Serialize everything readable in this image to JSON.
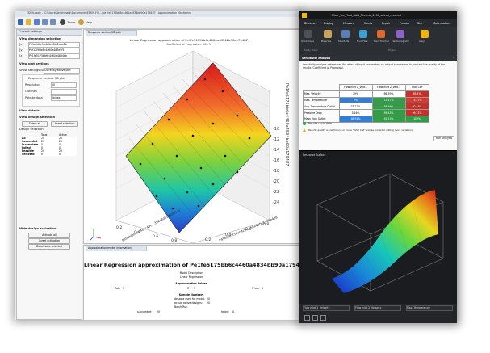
{
  "left_app": {
    "title": "EDEN-code - [C:\\Users\\Benchmark\\Documents\\EDEN-FV\\...\\pe1fe5175bb6c4460a4834bb90a179487 - Approximation Monitoring",
    "toolbar": {
      "zoom_label": "Zoom",
      "help_label": "Help"
    },
    "settings": {
      "panel_title": "Current settings",
      "view_dim_title": "View dimension selection",
      "dim_labels": [
        "[x]",
        "[y]",
        "[z]"
      ],
      "dim_values": [
        "P51a3d0c9b4e4c40b.1abe8b",
        "P5f12f5bb6c4460a487e5f5",
        "Pe1fe5175bb6c4460a4834bb"
      ],
      "plot_settings_title": "View plot settings",
      "show_setting_label": "Show settings for:",
      "show_setting_value": "Currently active plot",
      "response_label": "Response surface 3D plot",
      "field_labels": [
        "Resolution",
        "Outlines",
        "Palette data"
      ],
      "field_values": [
        "50",
        "",
        "Values"
      ],
      "view_details_title": "View details",
      "design_selection_title": "View design selection",
      "select_all": "Select all",
      "invert_selection": "Invert selection",
      "design_selection_label": "Design selection",
      "table_headers": [
        "",
        "Total",
        "Active"
      ],
      "table_rows": [
        [
          "All",
          "20",
          "20"
        ],
        [
          "Succeeded",
          "20",
          "20"
        ],
        [
          "Incomplete",
          "0",
          "0"
        ],
        [
          "Failed",
          "0",
          "0"
        ],
        [
          "Feasible",
          "20",
          "20"
        ],
        [
          "Selected",
          "0",
          "0"
        ]
      ],
      "design_activation_title": "Hide design activation",
      "activate_all": "Activate all",
      "invert_activation": "Invert activation",
      "deactivate_selected": "Deactivate selected"
    },
    "response_tab": "Response surface 3D plot",
    "chart_title": "Linear Regression approximation of Pe1fe5175bb6c4460a4834bb90a179487",
    "chart_subtitle": "Coefficient of Prognosis = 100 %",
    "z_axis_label": "Pe1fe5175bb6c4460a4834bb90a179487",
    "x_axis_label": "P39dbfa0e9b4e4c40e...3b8c8db5246b5c0",
    "y_axis_label": "P45bf0b3f34eb4c0c...66e4b0e1326e488",
    "z_ticks": [
      "-10",
      "-12",
      "-14",
      "-16",
      "-18",
      "-20",
      "-22",
      "-24"
    ],
    "x_ticks": [
      "0.2",
      "0.4",
      "0.6",
      "0.8"
    ],
    "y_ticks": [
      "0.2",
      "0.4",
      "0.6",
      "0.8"
    ],
    "approx_tab": "Approximation model information",
    "approx_title": "Linear Regression approximation of Pe1fe5175bb6c4460a4834bb90a179487",
    "model_desc_label": "Model Description",
    "model_desc_value": "Linear Regression",
    "approx_values_label": "Approximation Values",
    "cop_label": "CoP:",
    "cop_value": "1",
    "r2_label": "R²:",
    "r2_value": "1",
    "r2adj_label": "R²adj:",
    "r2adj_value": "1",
    "sample_numbers_label": "Sample Numbers",
    "designs_used_label": "designs used for model:",
    "designs_used_value": "20",
    "actual_active_label": "actual active designs:",
    "actual_active_value": "20",
    "batch_label": "Batch/Run",
    "succeeded_label": "succeeded:",
    "succeeded_value": "20",
    "failed_label": "failed:",
    "failed_value": "0"
  },
  "right_app": {
    "title": "Mixer_Tee_Fluid_Solid_Thermal_2000_solved_resumed",
    "tabs": [
      "Discovery",
      "Display",
      "Measure",
      "Facets",
      "Repair",
      "Prepare",
      "Sim",
      "Optimization"
    ],
    "ribbon_items": [
      "QuickShape",
      "Materials",
      "Structural",
      "Fluid Flow",
      "Solid Thermal",
      "Electromagnetic",
      "Ansys",
      "Physics"
    ],
    "ribbon_group": "Study Sheet",
    "sensitivity_title": "Sensitivity Analysis",
    "sensitivity_desc": "Sensitivity analysis determines the effect of input parameters on output parameters to forecast the quality of the results (Coefficient of Prognosis).",
    "col_headers": [
      "",
      "Flow inlet 1_Velo...",
      "Flow inlet 2_Velo...",
      "Total CoP"
    ],
    "rows": [
      [
        "Max. Velocity",
        "19%",
        "66.39%",
        "85.1%"
      ],
      [
        "Max. Temperature",
        "0%",
        "13.17%",
        "13.17%"
      ],
      [
        "Avg. Temperature Outlet",
        "33.22%",
        "56.49%",
        "90.44%"
      ],
      [
        "Pressure Drop",
        "3.16%",
        "95.43%",
        "99.21%"
      ],
      [
        "Mass Flow Outlet",
        "58.92%",
        "41.13%",
        "100%"
      ]
    ],
    "row_colors": [
      [
        "#ffffff",
        "#ffffff",
        "#c7312a"
      ],
      [
        "#ffffff",
        "#2f9e44",
        "#d93a30"
      ],
      [
        "#2f7fd6",
        "#2f9e44",
        "#c7312a"
      ],
      [
        "#ffffff",
        "#2f9e44",
        "#c7312a"
      ],
      [
        "#2f7fd6",
        "#2f9e44",
        "#2f9e44"
      ]
    ],
    "status_ok": "Results up to date",
    "status_warn": "Results quality is low for one or more \"Total CoP\" values, consider adding more variations.",
    "run_analysis": "Run Analysis",
    "response_surface_title": "Response Surface",
    "dropdowns": [
      "Flow inlet 1_Velocity",
      "Flow inlet 2_Velocity",
      "Max. Temperature"
    ]
  }
}
